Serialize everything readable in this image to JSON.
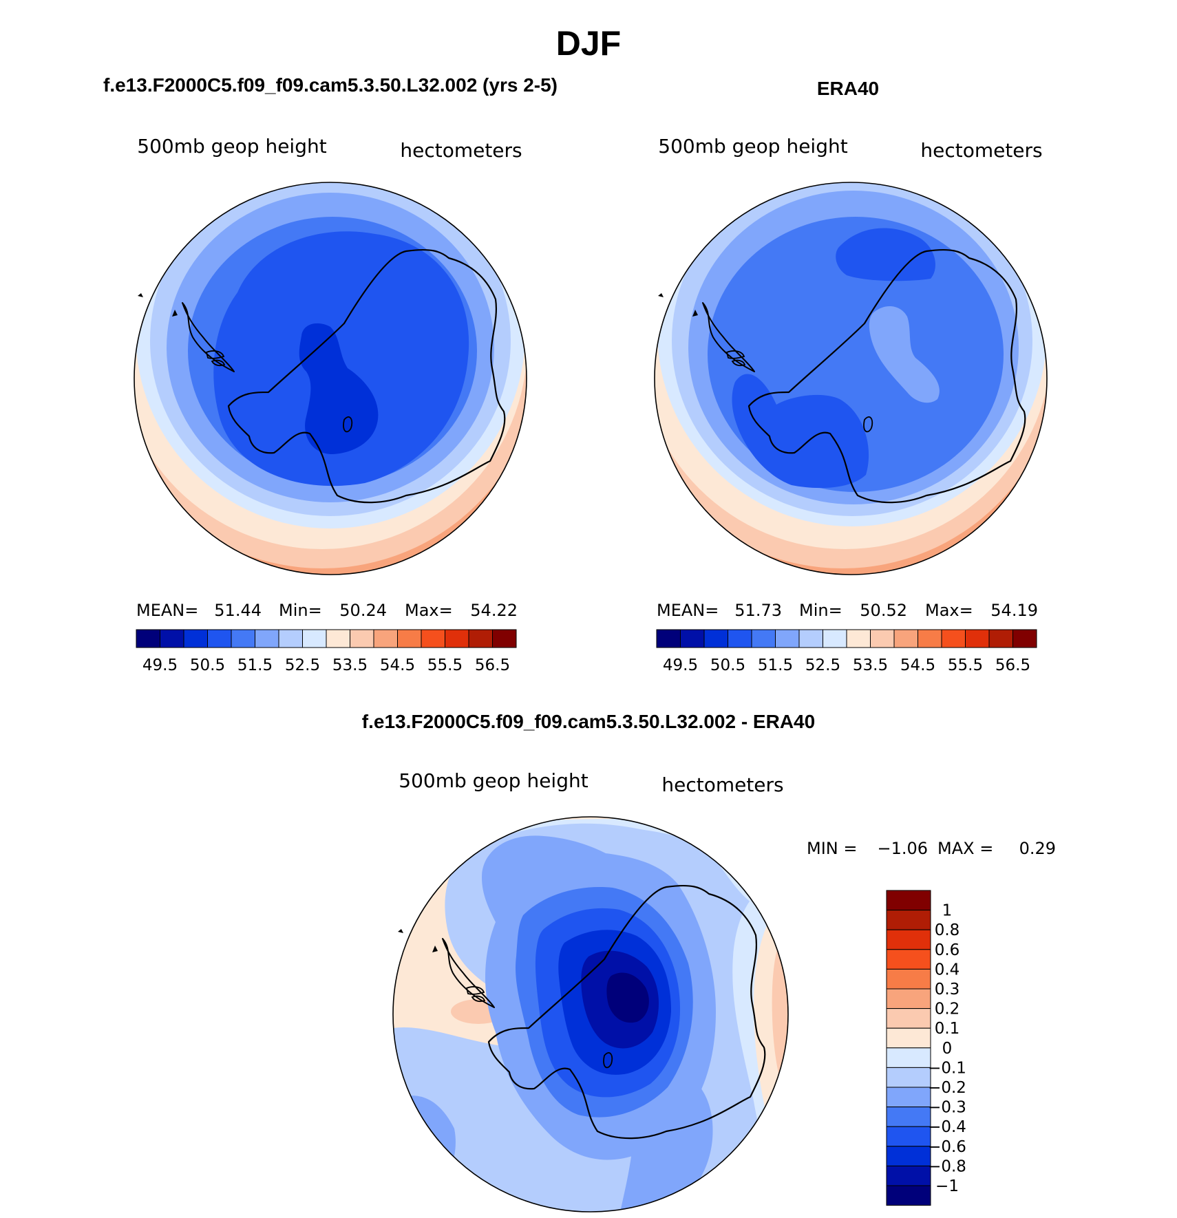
{
  "page_title": "DJF",
  "panels": {
    "model": {
      "title": "f.e13.F2000C5.f09_f09.cam5.3.50.L32.002 (yrs 2-5)",
      "variable": "500mb geop height",
      "units": "hectometers",
      "stats": {
        "mean_label": "MEAN=",
        "mean": "51.44",
        "min_label": "Min=",
        "min": "50.24",
        "max_label": "Max=",
        "max": "54.22"
      }
    },
    "obs": {
      "title": "ERA40",
      "variable": "500mb geop height",
      "units": "hectometers",
      "stats": {
        "mean_label": "MEAN=",
        "mean": "51.73",
        "min_label": "Min=",
        "min": "50.52",
        "max_label": "Max=",
        "max": "54.19"
      }
    },
    "diff": {
      "title": "f.e13.F2000C5.f09_f09.cam5.3.50.L32.002 - ERA40",
      "variable": "500mb geop height",
      "units": "hectometers",
      "stats": {
        "min_label": "MIN =",
        "min": "−1.06",
        "max_label": "MAX =",
        "max": "0.29"
      }
    }
  },
  "colorbars": {
    "height": {
      "colors": [
        "#00007a",
        "#0010a8",
        "#0030d8",
        "#1f55f0",
        "#4479f5",
        "#80a6fb",
        "#b4cdfd",
        "#d8e9ff",
        "#fde8d6",
        "#fbcab0",
        "#f8a47c",
        "#f77c47",
        "#f5501d",
        "#e0300a",
        "#b01d05",
        "#800000"
      ],
      "tick_labels": [
        "49.5",
        "50.5",
        "51.5",
        "52.5",
        "53.5",
        "54.5",
        "55.5",
        "56.5"
      ]
    },
    "diff": {
      "colors": [
        "#800000",
        "#b01d05",
        "#e0300a",
        "#f5501d",
        "#f77c47",
        "#f8a47c",
        "#fbcab0",
        "#fde8d6",
        "#d8e9ff",
        "#b4cdfd",
        "#80a6fb",
        "#4479f5",
        "#1f55f0",
        "#0030d8",
        "#0010a8",
        "#00007a"
      ],
      "tick_labels": [
        "1",
        "0.8",
        "0.6",
        "0.4",
        "0.3",
        "0.2",
        "0.1",
        "0",
        "−0.1",
        "−0.2",
        "−0.3",
        "−0.4",
        "−0.6",
        "−0.8",
        "−1"
      ]
    }
  }
}
